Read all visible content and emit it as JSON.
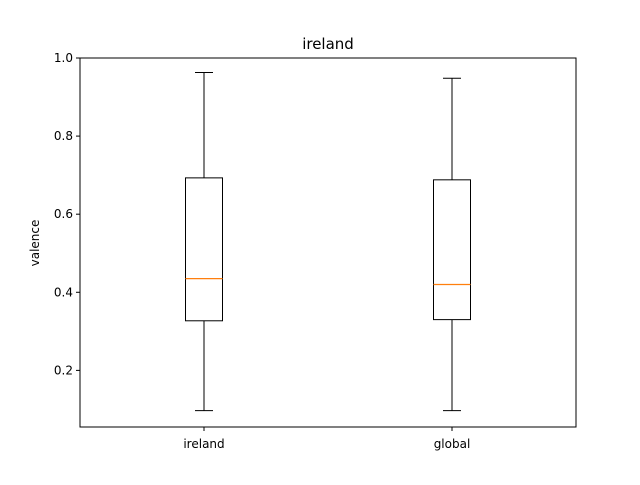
{
  "chart_data": {
    "type": "box",
    "title": "ireland",
    "xlabel": "",
    "ylabel": "valence",
    "categories": [
      "ireland",
      "global"
    ],
    "ylim": [
      0.055,
      1.0
    ],
    "yticks": [
      "0.2",
      "0.4",
      "0.6",
      "0.8",
      "1.0"
    ],
    "grid": false,
    "boxes": [
      {
        "category": "ireland",
        "whisker_low": 0.097,
        "q1": 0.327,
        "median": 0.435,
        "q3": 0.693,
        "whisker_high": 0.963
      },
      {
        "category": "global",
        "whisker_low": 0.097,
        "q1": 0.33,
        "median": 0.42,
        "q3": 0.688,
        "whisker_high": 0.948
      }
    ],
    "colors": {
      "box": "#000000",
      "median": "#ff7f0e"
    }
  }
}
